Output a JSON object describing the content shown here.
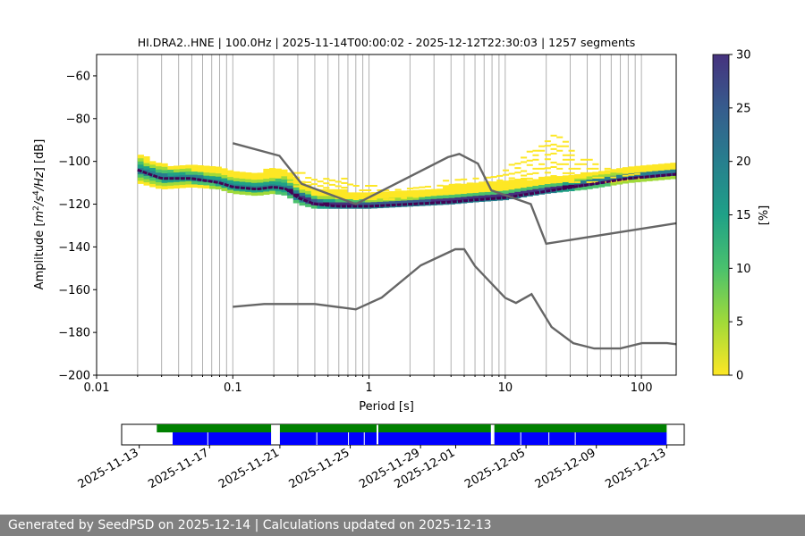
{
  "chart_data": {
    "type": "heatmap",
    "title": "HI.DRA2..HNE | 100.0Hz | 2025-11-14T00:00:02 - 2025-12-12T22:30:03 | 1257 segments",
    "xlabel": "Period [s]",
    "ylabel_parts": {
      "pre": "Amplitude [",
      "m": "m",
      "sq": "2",
      "s": "/s",
      "four": "4",
      "hz": "/Hz",
      "post": "] [dB]"
    },
    "x_scale": "log",
    "xlim": [
      0.01,
      180
    ],
    "ylim": [
      -200,
      -50
    ],
    "x_ticks": [
      0.01,
      0.1,
      1,
      10,
      100
    ],
    "x_tick_labels": [
      "0.01",
      "0.1",
      "1",
      "10",
      "100"
    ],
    "y_ticks": [
      -200,
      -180,
      -160,
      -140,
      -120,
      -100,
      -80,
      -60
    ],
    "y_tick_labels": [
      "−200",
      "−180",
      "−160",
      "−140",
      "−120",
      "−100",
      "−80",
      "−60"
    ],
    "grid": "vertical-only",
    "colormap": "viridis_r",
    "colorbar": {
      "label": "[%]",
      "range": [
        0,
        30
      ],
      "ticks": [
        0,
        5,
        10,
        15,
        20,
        25,
        30
      ],
      "tick_labels": [
        "0",
        "5",
        "10",
        "15",
        "20",
        "25",
        "30"
      ]
    },
    "mode_curve": {
      "period": [
        0.02,
        0.03,
        0.05,
        0.08,
        0.1,
        0.15,
        0.2,
        0.25,
        0.3,
        0.4,
        0.6,
        0.8,
        1,
        2,
        4,
        6,
        10,
        20,
        40,
        80,
        180
      ],
      "db": [
        -104,
        -108,
        -108,
        -110,
        -112,
        -113,
        -112,
        -113,
        -117,
        -120,
        -121,
        -121,
        -121,
        -120,
        -119,
        -118,
        -117,
        -114,
        -111,
        -108,
        -106
      ]
    },
    "density_band": {
      "period": [
        0.02,
        0.03,
        0.05,
        0.08,
        0.1,
        0.15,
        0.2,
        0.25,
        0.3,
        0.4,
        0.6,
        0.8,
        1,
        2,
        4,
        6,
        10,
        20,
        40,
        80,
        180
      ],
      "low": [
        -110,
        -113,
        -112,
        -113,
        -115,
        -116,
        -115,
        -116,
        -120,
        -122,
        -122,
        -122,
        -122,
        -121,
        -120,
        -119,
        -118,
        -115,
        -113,
        -110,
        -108
      ],
      "high": [
        -97,
        -102,
        -103,
        -104,
        -106,
        -106,
        -104,
        -104,
        -109,
        -114,
        -114,
        -115,
        -116,
        -115,
        -112,
        -111,
        -110,
        -108,
        -106,
        -104,
        -102
      ]
    },
    "sporadic_high": {
      "period": [
        0.25,
        0.35,
        0.5,
        0.8,
        1.5,
        3,
        5,
        8,
        12,
        16,
        20,
        22,
        25,
        35,
        60,
        100
      ],
      "low": [
        -112,
        -112,
        -115,
        -118,
        -118,
        -116,
        -115,
        -114,
        -112,
        -110,
        -110,
        -109,
        -110,
        -110,
        -110,
        -108
      ],
      "high": [
        -104,
        -104,
        -106,
        -110,
        -113,
        -110,
        -108,
        -106,
        -100,
        -94,
        -89,
        -86,
        -88,
        -97,
        -104,
        -104
      ]
    },
    "nhnm": {
      "period": [
        0.1,
        0.22,
        0.32,
        0.8,
        3.8,
        4.6,
        6.3,
        7.9,
        15.4,
        20,
        354.8
      ],
      "db": [
        -91.5,
        -97.4,
        -110.5,
        -120,
        -98,
        -96.5,
        -101,
        -113.5,
        -120,
        -138.5,
        -126
      ]
    },
    "nlnm": {
      "period": [
        0.1,
        0.17,
        0.4,
        0.8,
        1.24,
        2.4,
        4.3,
        5,
        6,
        10,
        12,
        15.6,
        21.9,
        31.6,
        45,
        70,
        101,
        154,
        328
      ],
      "db": [
        -168,
        -166.7,
        -166.7,
        -169.2,
        -163.7,
        -148.6,
        -141.1,
        -141.1,
        -149,
        -163.8,
        -166.2,
        -162.1,
        -177.5,
        -185,
        -187.5,
        -187.5,
        -185,
        -185,
        -187.5
      ]
    },
    "timeline": {
      "ticks": [
        "2025-11-13",
        "2025-11-17",
        "2025-11-21",
        "2025-11-25",
        "2025-11-29",
        "2025-12-01",
        "2025-12-05",
        "2025-12-09",
        "2025-12-13"
      ],
      "start": "2025-11-12",
      "end": "2025-12-14",
      "green": [
        [
          "2025-11-14",
          "2025-11-20.5"
        ],
        [
          "2025-11-21",
          "2025-11-26.5"
        ],
        [
          "2025-11-26.6",
          "2025-12-03"
        ],
        [
          "2025-12-03.2",
          "2025-12-13"
        ]
      ],
      "blue": [
        [
          "2025-11-14.9",
          "2025-11-20.5"
        ],
        [
          "2025-11-21",
          "2025-11-26.5"
        ],
        [
          "2025-11-26.6",
          "2025-12-03"
        ],
        [
          "2025-12-03.2",
          "2025-12-13"
        ]
      ],
      "gaps": [
        "2025-11-16.9",
        "2025-11-23.1",
        "2025-11-24.9",
        "2025-11-25.8",
        "2025-12-04.7",
        "2025-12-06.3",
        "2025-12-07.8"
      ]
    }
  },
  "footer": {
    "text": "Generated by SeedPSD on 2025-12-14 | Calculations updated on 2025-12-13"
  }
}
